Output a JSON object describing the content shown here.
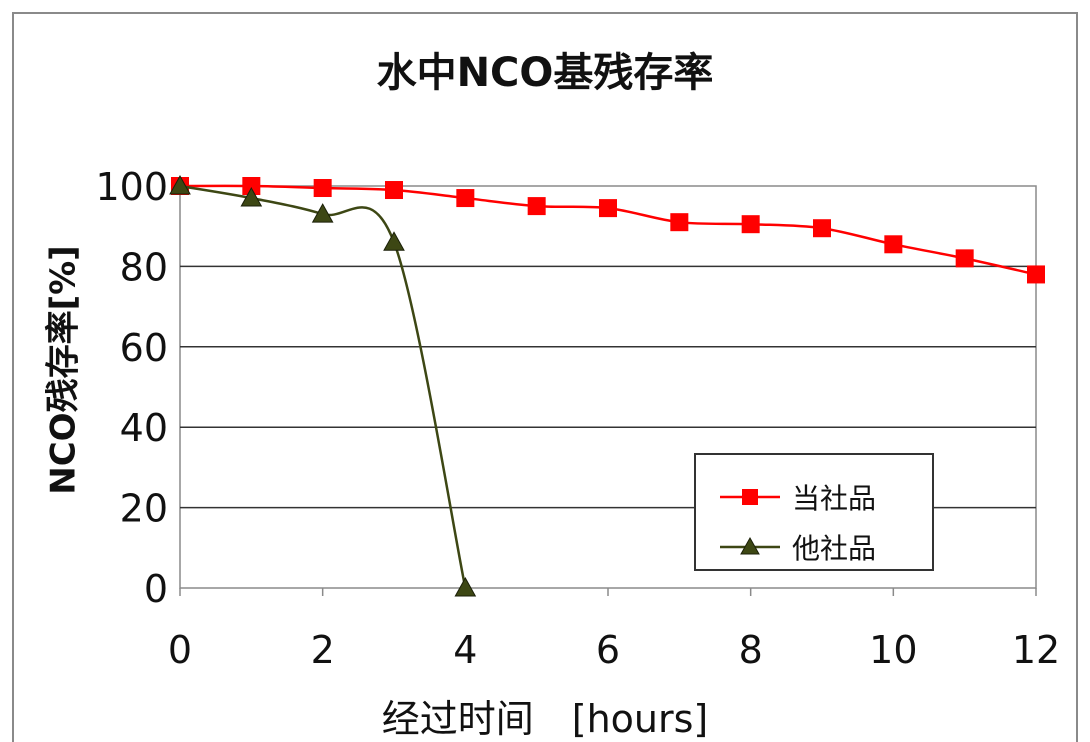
{
  "chart_data": {
    "type": "line",
    "title": "水中NCO基残存率",
    "xlabel": "经过时间　[hours]",
    "ylabel": "NCO残存率[%]",
    "xlim": [
      0,
      12
    ],
    "ylim": [
      0,
      100
    ],
    "x_ticks": [
      0,
      2,
      4,
      6,
      8,
      10,
      12
    ],
    "y_ticks": [
      0,
      20,
      40,
      60,
      80,
      100
    ],
    "grid": "horizontal",
    "legend_position": "lower-right",
    "series": [
      {
        "name": "当社品",
        "color": "#ff0000",
        "marker": "square",
        "x": [
          0,
          1,
          2,
          3,
          4,
          5,
          6,
          7,
          8,
          9,
          10,
          11,
          12
        ],
        "y": [
          100,
          100,
          99.5,
          99,
          97,
          95,
          94.5,
          91,
          90.5,
          89.5,
          85.5,
          82,
          78
        ]
      },
      {
        "name": "他社品",
        "color": "#3d4714",
        "marker": "triangle",
        "x": [
          0,
          1,
          2,
          3,
          4
        ],
        "y": [
          100,
          97,
          93,
          86,
          0
        ]
      }
    ]
  }
}
